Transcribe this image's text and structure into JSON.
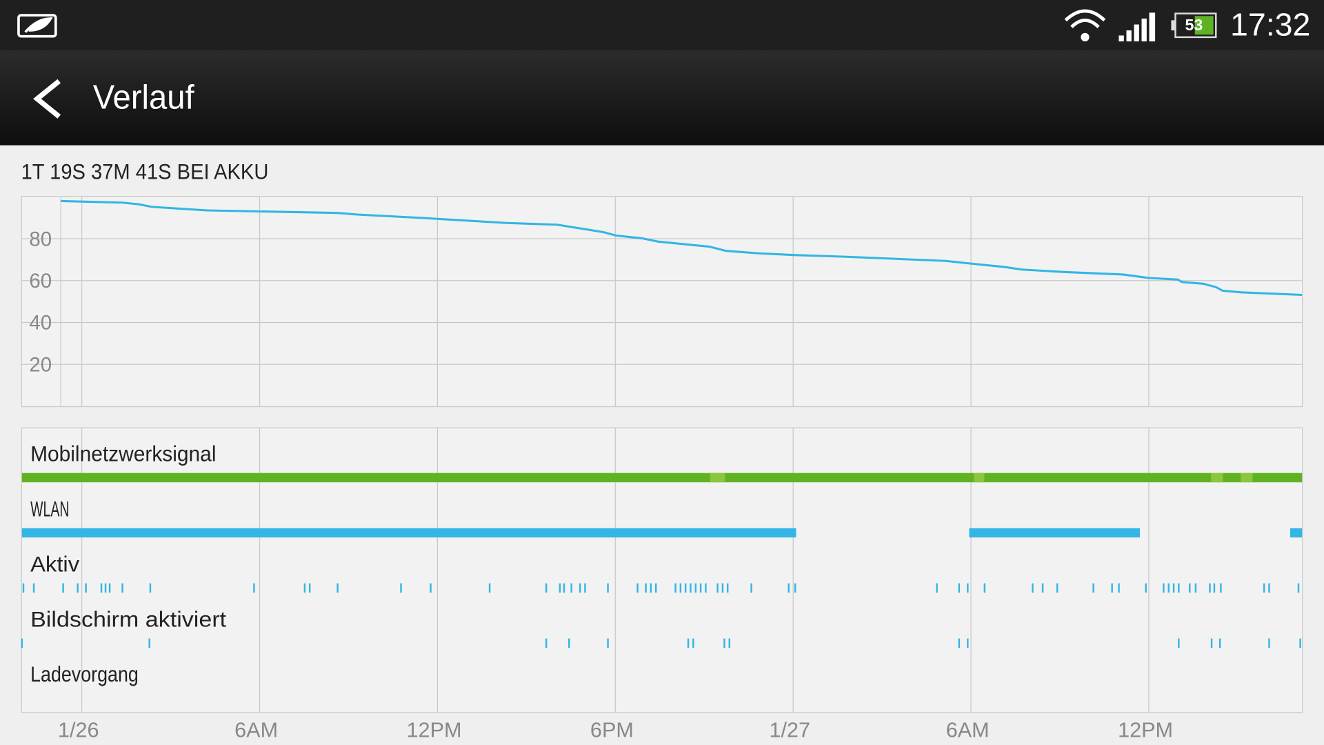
{
  "status_bar": {
    "battery": "53",
    "time": "17:32"
  },
  "header": {
    "title": "Verlauf"
  },
  "summary": "1T 19S 37M 41S BEI AKKU",
  "chart_data": {
    "type": "line",
    "color": "#33b5e5",
    "x": [
      -0.71,
      1.37,
      1.94,
      2.36,
      4.22,
      8.63,
      9.34,
      11.48,
      14.33,
      16.04,
      16.75,
      17.61,
      18.03,
      18.89,
      19.46,
      21.17,
      21.74,
      22.88,
      24.02,
      25.73,
      29.15,
      30.0,
      31.14,
      31.71,
      33.13,
      35.13,
      35.98,
      36.98,
      37.12,
      37.83,
      38.26,
      38.49,
      39.12,
      41.17
    ],
    "values": [
      98.0,
      97.2,
      96.4,
      95.2,
      93.5,
      92.3,
      91.5,
      89.9,
      87.5,
      86.7,
      85.1,
      83.1,
      81.5,
      80.2,
      78.6,
      76.2,
      74.2,
      73.0,
      72.2,
      71.4,
      69.4,
      68.1,
      66.5,
      65.3,
      64.1,
      62.9,
      61.3,
      60.5,
      59.3,
      58.5,
      56.9,
      55.2,
      54.4,
      53.2
    ],
    "xlim": [
      -2.02,
      41.17
    ],
    "ylim": [
      0,
      100
    ],
    "yticks": [
      20,
      40,
      60,
      80
    ],
    "xticks": [
      {
        "value": 0,
        "label": "1/26"
      },
      {
        "value": 6,
        "label": "6AM"
      },
      {
        "value": 12,
        "label": "12PM"
      },
      {
        "value": 18,
        "label": "6PM"
      },
      {
        "value": 24,
        "label": "1/27"
      },
      {
        "value": 30,
        "label": "6AM"
      },
      {
        "value": 36,
        "label": "12PM"
      }
    ],
    "grid": true,
    "tracks": [
      {
        "label": "Mobilnetzwerksignal",
        "color": "#5fb323",
        "weak_color": "#8cc63f",
        "segments": [
          [
            -2.02,
            41.17
          ]
        ],
        "weak_segments": [
          [
            21.2,
            21.7
          ],
          [
            30.1,
            30.45
          ],
          [
            38.1,
            38.5
          ],
          [
            39.1,
            39.5
          ]
        ]
      },
      {
        "label": "WLAN",
        "color": "#33b5e5",
        "segments": [
          [
            -2.02,
            24.1
          ],
          [
            29.94,
            35.7
          ],
          [
            40.77,
            41.17
          ]
        ]
      },
      {
        "label": "Aktiv",
        "color": "#33b5e5",
        "events": [
          -1.97,
          -1.62,
          -0.63,
          -0.14,
          0.14,
          0.66,
          0.8,
          0.94,
          1.37,
          2.31,
          5.81,
          7.52,
          7.69,
          8.63,
          10.77,
          11.77,
          13.76,
          15.67,
          16.13,
          16.27,
          16.52,
          16.81,
          16.98,
          17.75,
          18.75,
          19.03,
          19.2,
          19.37,
          20.03,
          20.2,
          20.37,
          20.54,
          20.71,
          20.88,
          21.05,
          21.45,
          21.62,
          21.79,
          22.59,
          23.85,
          24.07,
          28.85,
          29.6,
          29.89,
          30.46,
          32.08,
          32.42,
          32.91,
          34.13,
          34.76,
          34.99,
          35.9,
          36.5,
          36.67,
          36.84,
          37.01,
          37.38,
          37.58,
          38.06,
          38.21,
          38.43,
          39.89,
          40.06,
          41.05
        ]
      },
      {
        "label": "Bildschirm aktiviert",
        "color": "#33b5e5",
        "events": [
          -2.02,
          2.28,
          15.67,
          16.44,
          17.75,
          20.46,
          20.63,
          21.68,
          21.85,
          29.6,
          29.89,
          37.01,
          38.12,
          38.4,
          40.06,
          41.11
        ]
      },
      {
        "label": "Ladevorgang",
        "color": "#33b5e5",
        "events": []
      }
    ]
  }
}
